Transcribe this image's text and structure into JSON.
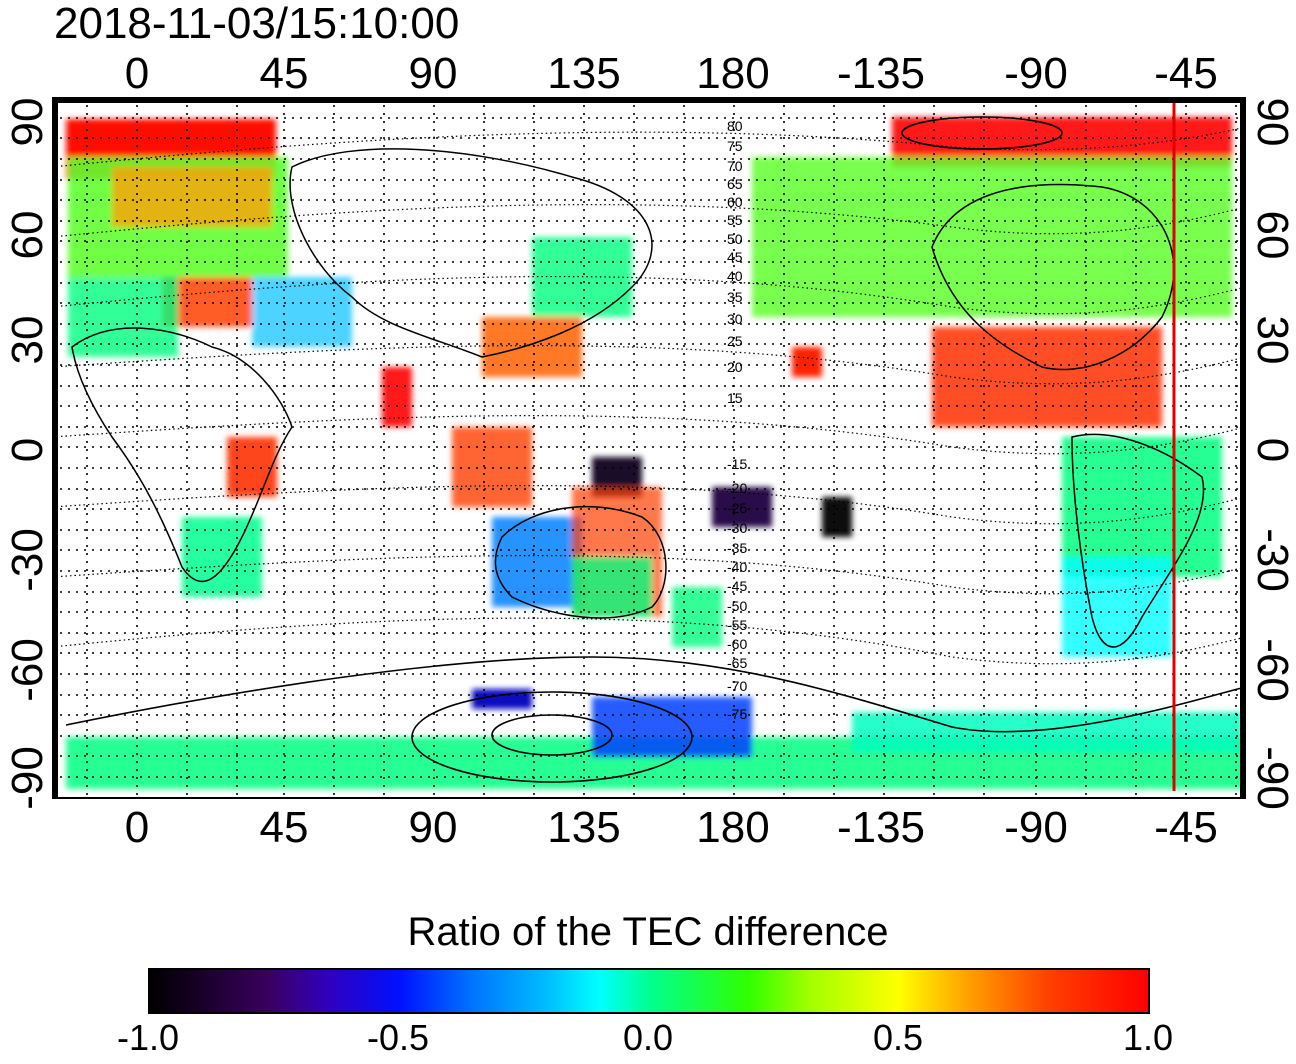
{
  "timestamp": "2018-11-03/15:10:00",
  "axes": {
    "top_lon_labels": [
      "0",
      "45",
      "90",
      "135",
      "180",
      "-135",
      "-90",
      "-45"
    ],
    "bottom_lon_labels": [
      "0",
      "45",
      "90",
      "135",
      "180",
      "-135",
      "-90",
      "-45"
    ],
    "left_lat_labels": [
      "90",
      "60",
      "30",
      "0",
      "-30",
      "-60",
      "-90"
    ],
    "right_lat_labels": [
      "90",
      "60",
      "30",
      "0",
      "-30",
      "-60",
      "-90"
    ]
  },
  "mag_lat_labels_north": [
    "80",
    "75",
    "70",
    "65",
    "60",
    "55",
    "50",
    "45",
    "40",
    "35",
    "30",
    "25",
    "20",
    "15"
  ],
  "mag_lat_labels_south": [
    "-15",
    "-20",
    "-25",
    "-30",
    "-35",
    "-40",
    "-45",
    "-50",
    "-55",
    "-60",
    "-65",
    "-70",
    "-75"
  ],
  "colorbar": {
    "title": "Ratio of the TEC difference",
    "tick_labels": [
      "-1.0",
      "-0.5",
      "0.0",
      "0.5",
      "1.0"
    ],
    "range": [
      -1.0,
      1.0
    ]
  },
  "colors": {
    "high": "#ff0000",
    "mid": "#00ff60",
    "low": "#0010ff",
    "min": "#000000",
    "terminator": "#e00000"
  }
}
